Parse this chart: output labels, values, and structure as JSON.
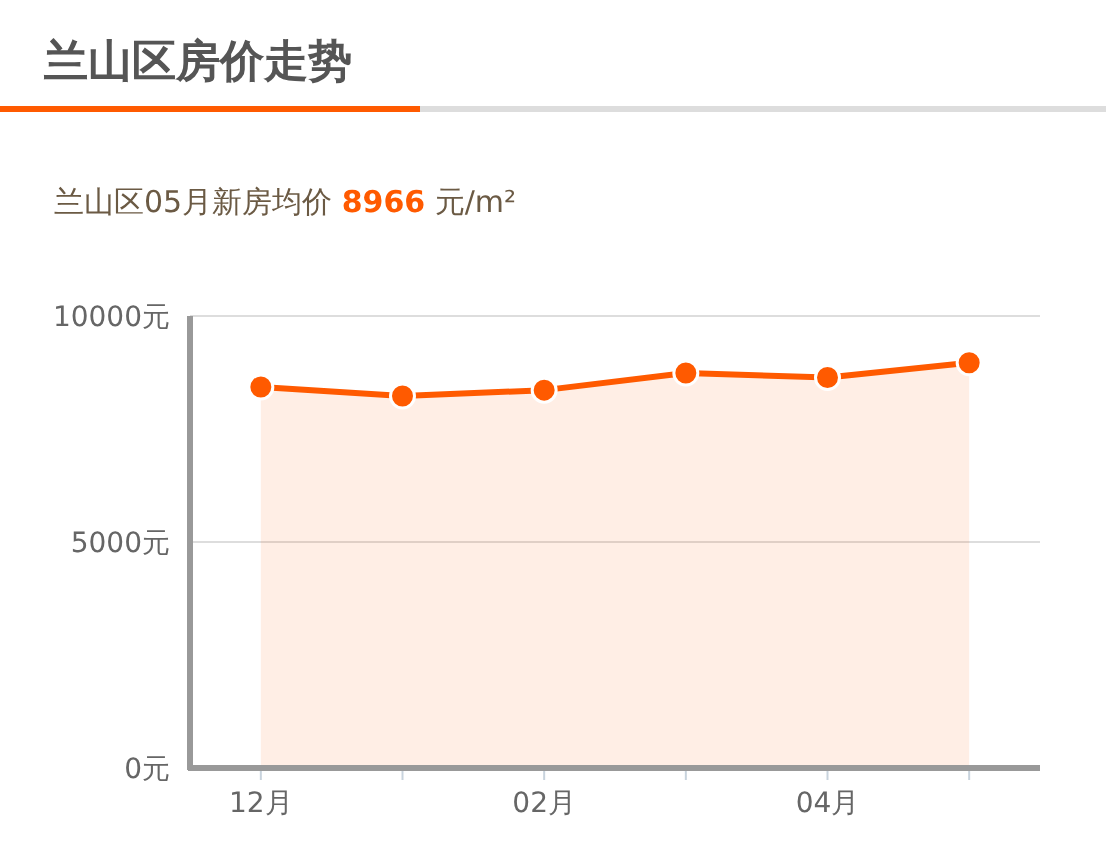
{
  "chart_data": {
    "type": "area",
    "title": "兰山区房价走势",
    "subtitle": "兰山区05月新房均价 8966 元/m²",
    "categories": [
      "12月",
      null,
      "02月",
      null,
      "04月",
      null
    ],
    "series": [
      {
        "color": "#ff5a00",
        "values": [
          8430,
          8230,
          8360,
          8740,
          8640,
          8966
        ]
      }
    ],
    "ylim": [
      0,
      10000
    ],
    "yticks": [
      {
        "value": 0,
        "label": "0元"
      },
      {
        "value": 5000,
        "label": "5000元"
      },
      {
        "value": 10000,
        "label": "10000元"
      }
    ],
    "grid": "y",
    "marker": "circle",
    "line_style": "solid"
  }
}
